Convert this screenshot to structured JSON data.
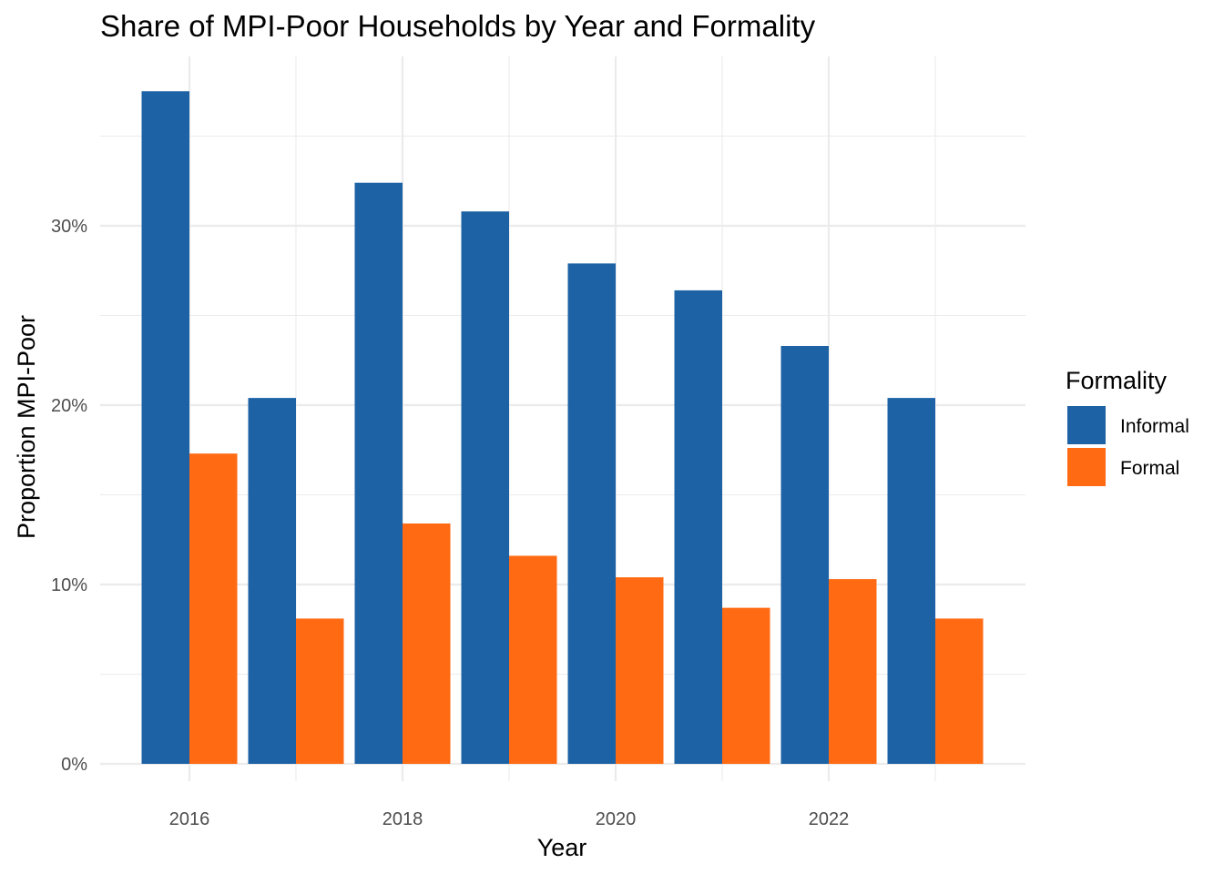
{
  "chart_data": {
    "type": "bar",
    "title": "Share of MPI-Poor Households by Year and Formality",
    "xlabel": "Year",
    "ylabel": "Proportion MPI-Poor",
    "categories": [
      2016,
      2017,
      2018,
      2019,
      2020,
      2021,
      2022,
      2023
    ],
    "x_tick_labels": [
      "2016",
      "2018",
      "2020",
      "2022"
    ],
    "x_tick_values": [
      2016,
      2018,
      2020,
      2022
    ],
    "y_tick_labels": [
      "0%",
      "10%",
      "20%",
      "30%"
    ],
    "y_tick_values": [
      0,
      0.1,
      0.2,
      0.3
    ],
    "ylim": [
      0,
      0.395
    ],
    "grid": true,
    "legend": {
      "title": "Formality",
      "position": "right"
    },
    "series": [
      {
        "name": "Informal",
        "color": "#1c62a5",
        "values": [
          0.375,
          0.204,
          0.324,
          0.308,
          0.279,
          0.264,
          0.233,
          0.204
        ]
      },
      {
        "name": "Formal",
        "color": "#ff6a13",
        "values": [
          0.173,
          0.081,
          0.134,
          0.116,
          0.104,
          0.087,
          0.103,
          0.081
        ]
      }
    ]
  }
}
